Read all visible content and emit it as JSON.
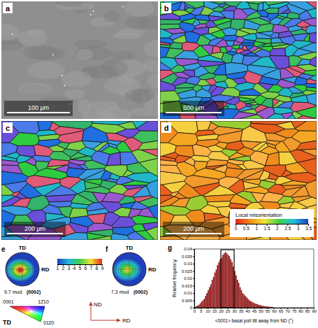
{
  "chart_data": {
    "type": "histogram",
    "letter": "g",
    "x_label": "<0001> basal poit tilt away from ND (°)",
    "y_label": "Relative frequency",
    "color": "#8b0a0a",
    "bins": [
      0,
      1,
      2,
      3,
      4,
      5,
      6,
      7,
      8,
      9,
      10,
      11,
      12,
      13,
      14,
      15,
      16,
      17,
      18,
      19,
      20,
      21,
      22,
      23,
      24,
      25,
      26,
      27,
      28,
      29,
      30,
      31,
      32,
      33,
      34,
      35,
      36,
      37,
      38,
      39,
      40,
      41,
      42,
      43,
      44,
      45,
      46,
      47,
      48,
      49,
      50,
      51,
      52,
      53,
      54,
      55,
      56,
      57,
      58,
      59,
      60
    ],
    "values": [
      0.0005,
      0.001,
      0.0015,
      0.002,
      0.003,
      0.004,
      0.005,
      0.006,
      0.008,
      0.01,
      0.012,
      0.014,
      0.016,
      0.019,
      0.021,
      0.024,
      0.026,
      0.029,
      0.031,
      0.033,
      0.034,
      0.036,
      0.037,
      0.038,
      0.037,
      0.036,
      0.035,
      0.033,
      0.031,
      0.028,
      0.025,
      0.022,
      0.019,
      0.017,
      0.014,
      0.012,
      0.01,
      0.009,
      0.008,
      0.007,
      0.006,
      0.005,
      0.0045,
      0.004,
      0.0035,
      0.003,
      0.0027,
      0.0024,
      0.002,
      0.0018,
      0.0015,
      0.0013,
      0.0011,
      0.001,
      0.0009,
      0.0008,
      0.0007,
      0.0006,
      0.0005,
      0.0004
    ],
    "xlim": [
      0,
      90
    ],
    "ylim": [
      0,
      0.04
    ],
    "xticks": [
      0,
      5,
      10,
      15,
      20,
      25,
      30,
      35,
      40,
      45,
      50,
      55,
      60,
      65,
      70,
      75,
      80,
      85,
      90
    ],
    "yticks": [
      0,
      0.005,
      0.01,
      0.015,
      0.02,
      0.025,
      0.03,
      0.035,
      0.04
    ],
    "highlight_x": [
      20,
      30
    ],
    "highlight_top": 0.0395
  },
  "images": [
    {
      "letter": "a",
      "scale_bar": "100 μm"
    },
    {
      "letter": "b",
      "scale_bar": "500 μm"
    },
    {
      "letter": "c",
      "scale_bar": "200 μm"
    },
    {
      "letter": "d",
      "scale_bar": "200 μm",
      "colorbar": {
        "label": "Local misorientation",
        "range": [
          0,
          3.5
        ],
        "ticks": [
          0,
          0.5,
          1,
          1.5,
          2,
          2.5,
          3,
          3.5
        ]
      }
    }
  ],
  "pole_figures": [
    {
      "letter": "e",
      "max": 9.7,
      "max_label": "9.7 mud",
      "plane": "(0002)",
      "axis_labels": [
        "TD",
        "RD"
      ]
    },
    {
      "letter": "f",
      "max": 7.3,
      "max_label": "7.3 mud",
      "plane": "(0002)",
      "axis_labels": [
        "TD",
        "RD"
      ]
    }
  ],
  "pole_colorbar": {
    "range": [
      1,
      9
    ],
    "ticks": [
      1,
      2,
      3,
      4,
      5,
      6,
      7,
      8,
      9
    ]
  },
  "ipf_triangle": {
    "corners": [
      "0001",
      "12̄10",
      "011̄0"
    ],
    "sample_axis": "TD"
  },
  "sample_axes": {
    "vertical": "ND",
    "horizontal": "RD"
  }
}
